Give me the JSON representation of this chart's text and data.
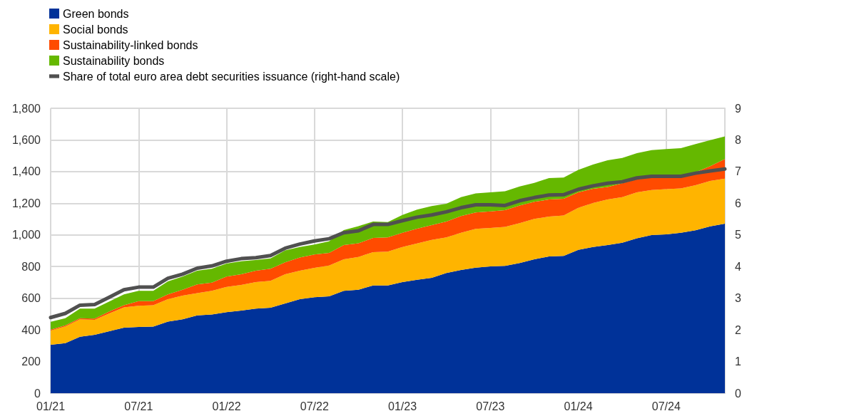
{
  "chart_data": {
    "type": "area",
    "stacked": true,
    "categories": [
      "01/21",
      null,
      null,
      null,
      null,
      null,
      "07/21",
      null,
      null,
      null,
      null,
      null,
      "01/22",
      null,
      null,
      null,
      null,
      null,
      "07/22",
      null,
      null,
      null,
      null,
      null,
      "01/23",
      null,
      null,
      null,
      null,
      null,
      "07/23",
      null,
      null,
      null,
      null,
      null,
      "01/24",
      null,
      null,
      null,
      null,
      null,
      "07/24",
      null,
      null,
      null,
      null
    ],
    "series": [
      {
        "name": "Green bonds",
        "color": "#003299",
        "values": [
          306,
          316,
          357,
          369,
          392,
          414,
          419,
          421,
          452,
          467,
          492,
          497,
          512,
          522,
          534,
          540,
          567,
          594,
          606,
          612,
          647,
          654,
          681,
          681,
          702,
          717,
          729,
          759,
          778,
          793,
          801,
          804,
          822,
          846,
          864,
          867,
          906,
          924,
          936,
          951,
          979,
          999,
          1003,
          1014,
          1029,
          1054,
          1071
        ]
      },
      {
        "name": "Social bonds",
        "color": "#ffb400",
        "values": [
          90,
          106,
          110,
          95,
          112,
          128,
          133,
          135,
          142,
          150,
          140,
          150,
          160,
          162,
          168,
          170,
          185,
          180,
          186,
          195,
          199,
          207,
          210,
          213,
          222,
          229,
          240,
          225,
          236,
          245,
          243,
          247,
          252,
          255,
          252,
          256,
          265,
          277,
          288,
          288,
          290,
          285,
          286,
          280,
          285,
          287,
          285
        ]
      },
      {
        "name": "Sustainability-linked bonds",
        "color": "#ff4b00",
        "values": [
          6,
          7,
          7,
          7,
          12,
          14,
          30,
          26,
          30,
          37,
          55,
          52,
          65,
          68,
          72,
          76,
          75,
          83,
          84,
          80,
          90,
          86,
          90,
          90,
          90,
          94,
          93,
          100,
          105,
          104,
          105,
          105,
          112,
          108,
          108,
          105,
          98,
          90,
          79,
          87,
          82,
          78,
          77,
          80,
          82,
          93,
          123
        ]
      },
      {
        "name": "Sustainability bonds",
        "color": "#65b800",
        "values": [
          49,
          45,
          60,
          63,
          63,
          68,
          65,
          65,
          83,
          83,
          87,
          87,
          82,
          82,
          68,
          66,
          75,
          67,
          63,
          73,
          94,
          108,
          104,
          97,
          112,
          120,
          120,
          113,
          120,
          120,
          120,
          120,
          120,
          120,
          135,
          134,
          142,
          153,
          168,
          160,
          165,
          174,
          176,
          174,
          178,
          165,
          143
        ]
      },
      {
        "name": "Share of total euro area debt securities issuance (right-hand scale)",
        "type": "line",
        "axis": "y2",
        "color": "#505050",
        "values": [
          2.39,
          2.52,
          2.78,
          2.8,
          3.03,
          3.27,
          3.35,
          3.35,
          3.63,
          3.76,
          3.95,
          4.02,
          4.17,
          4.25,
          4.28,
          4.35,
          4.58,
          4.71,
          4.81,
          4.88,
          5.07,
          5.13,
          5.33,
          5.33,
          5.45,
          5.56,
          5.63,
          5.73,
          5.86,
          5.95,
          5.95,
          5.93,
          6.08,
          6.18,
          6.26,
          6.27,
          6.44,
          6.55,
          6.63,
          6.68,
          6.8,
          6.85,
          6.85,
          6.85,
          6.95,
          7.02,
          7.08
        ]
      }
    ],
    "ylim": [
      0,
      1800
    ],
    "yticks": [
      0,
      200,
      400,
      600,
      800,
      {
        "value": 1000,
        "label": "1,000"
      },
      {
        "value": 1200,
        "label": "1,200"
      },
      {
        "value": 1400,
        "label": "1,400"
      },
      {
        "value": 1600,
        "label": "1,600"
      },
      {
        "value": 1800,
        "label": "1,800"
      }
    ],
    "y2lim": [
      0,
      9
    ],
    "y2ticks": [
      0,
      1,
      2,
      3,
      4,
      5,
      6,
      7,
      8,
      9
    ],
    "grid": true,
    "legend": "top left",
    "marker": "none",
    "line_style": "solid"
  }
}
